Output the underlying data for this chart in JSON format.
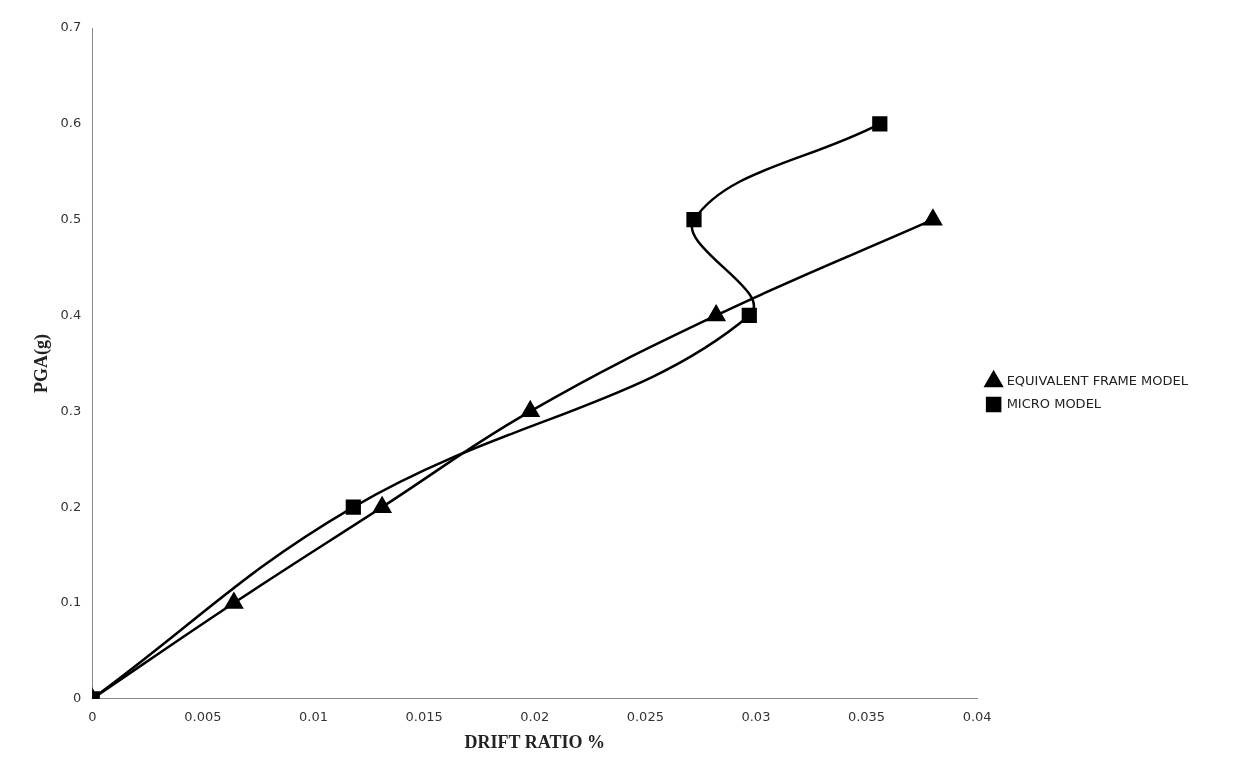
{
  "chart_data": {
    "type": "line",
    "xlabel": "DRIFT RATIO %",
    "ylabel": "PGA(g)",
    "xlim": [
      0,
      0.04
    ],
    "xticks": [
      0,
      0.005,
      0.01,
      0.015,
      0.02,
      0.025,
      0.03,
      0.035,
      0.04
    ],
    "ylim": [
      0,
      0.7
    ],
    "yticks": [
      0,
      0.1,
      0.2,
      0.3,
      0.4,
      0.5,
      0.6,
      0.7
    ],
    "grid": false,
    "legend": "right",
    "line_style": "solid",
    "series": [
      {
        "name": "EQUIVALENT FRAME MODEL",
        "color": "#000000",
        "marker": "triangle",
        "x": [
          0,
          0.0064,
          0.0131,
          0.0198,
          0.0282,
          0.038
        ],
        "values": [
          0,
          0.1,
          0.2,
          0.3,
          0.4,
          0.5
        ]
      },
      {
        "name": "MICRO MODEL",
        "color": "#000000",
        "marker": "square",
        "x": [
          0,
          0.0118,
          0.0297,
          0.0272,
          0.0356
        ],
        "values": [
          0,
          0.2,
          0.4,
          0.5,
          0.6
        ]
      }
    ]
  }
}
